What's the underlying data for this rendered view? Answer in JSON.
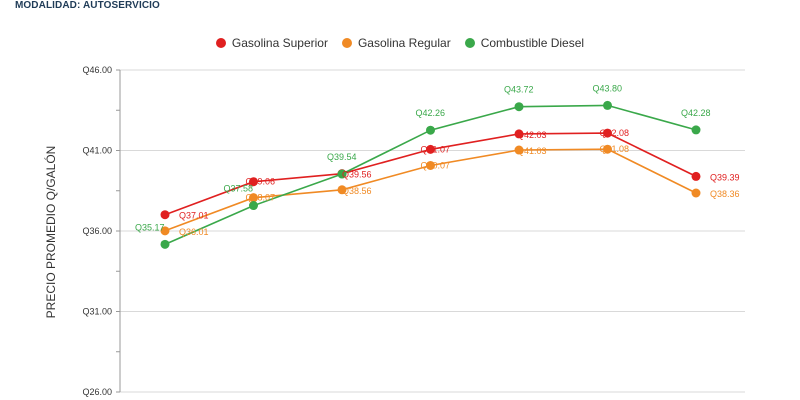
{
  "header": {
    "modalidad": "MODALIDAD: AUTOSERVICIO"
  },
  "chart_data": {
    "type": "line",
    "ylabel": "PRECIO PROMEDIO Q/GALÓN",
    "xlabel": "",
    "ylim": [
      26,
      46
    ],
    "y_ticks": [
      46,
      41,
      36,
      31,
      26
    ],
    "y_tick_labels": [
      "Q46.00",
      "Q41.00",
      "Q36.00",
      "Q31.00",
      "Q26.00"
    ],
    "grid": true,
    "legend_position": "top-center",
    "x": [
      1,
      2,
      3,
      4,
      5,
      6,
      7
    ],
    "series": [
      {
        "name": "Gasolina Superior",
        "color": "#e02020",
        "values": [
          37.01,
          39.06,
          39.56,
          41.07,
          42.03,
          42.08,
          39.39
        ],
        "labels": [
          "Q37.01",
          "Q39.06",
          "Q39.56",
          "Q41.07",
          "Q42.03",
          "Q42.08",
          "Q39.39"
        ]
      },
      {
        "name": "Gasolina Regular",
        "color": "#f08a24",
        "values": [
          36.01,
          38.07,
          38.56,
          40.07,
          41.03,
          41.08,
          38.36
        ],
        "labels": [
          "Q36.01",
          "Q38.07",
          "Q38.56",
          "Q40.07",
          "Q41.03",
          "Q41.08",
          "Q38.36"
        ]
      },
      {
        "name": "Combustible Diesel",
        "color": "#3aa84a",
        "values": [
          35.17,
          37.58,
          39.54,
          42.26,
          43.72,
          43.8,
          42.28
        ],
        "labels": [
          "Q35.17",
          "Q37.58",
          "Q39.54",
          "Q42.26",
          "Q43.72",
          "Q43.80",
          "Q42.28"
        ]
      }
    ]
  }
}
